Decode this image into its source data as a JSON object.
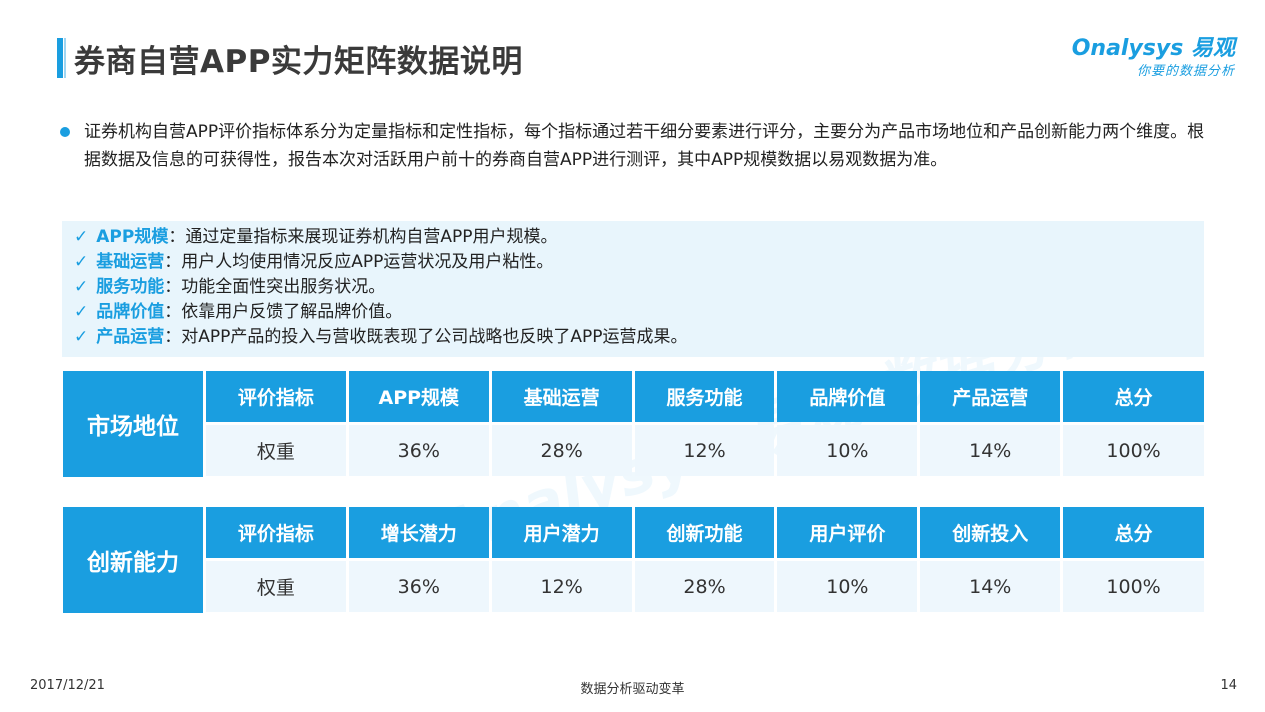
{
  "title": "券商自营APP实力矩阵数据说明",
  "logo": {
    "main": "Onalysys 易观",
    "sub": "你要的数据分析"
  },
  "intro": "证券机构自营APP评价指标体系分为定量指标和定性指标，每个指标通过若干细分要素进行评分，主要分为产品市场地位和产品创新能力两个维度。根据数据及信息的可获得性，报告本次对活跃用户前十的券商自营APP进行测评，其中APP规模数据以易观数据为准。",
  "checks": [
    {
      "label": "APP规模",
      "desc": "：通过定量指标来展现证券机构自营APP用户规模。"
    },
    {
      "label": "基础运营",
      "desc": "：用户人均使用情况反应APP运营状况及用户粘性。"
    },
    {
      "label": "服务功能",
      "desc": "：功能全面性突出服务状况。"
    },
    {
      "label": "品牌价值",
      "desc": "：依靠用户反馈了解品牌价值。"
    },
    {
      "label": "产品运营",
      "desc": "：对APP产品的投入与营收既表现了公司战略也反映了APP运营成果。"
    }
  ],
  "check_mark": "✓",
  "tables": [
    {
      "title": "市场地位",
      "headers": [
        "评价指标",
        "APP规模",
        "基础运营",
        "服务功能",
        "品牌价值",
        "产品运营",
        "总分"
      ],
      "values": [
        "权重",
        "36%",
        "28%",
        "12%",
        "10%",
        "14%",
        "100%"
      ]
    },
    {
      "title": "创新能力",
      "headers": [
        "评价指标",
        "增长潜力",
        "用户潜力",
        "创新功能",
        "用户评价",
        "创新投入",
        "总分"
      ],
      "values": [
        "权重",
        "36%",
        "12%",
        "28%",
        "10%",
        "14%",
        "100%"
      ]
    }
  ],
  "watermark": "Analysys 易观 数据分析",
  "footer": {
    "date": "2017/12/21",
    "center": "数据分析驱动变革",
    "page": "14"
  },
  "colors": {
    "accent": "#1a9ee0",
    "light_bg": "#e8f5fc"
  }
}
